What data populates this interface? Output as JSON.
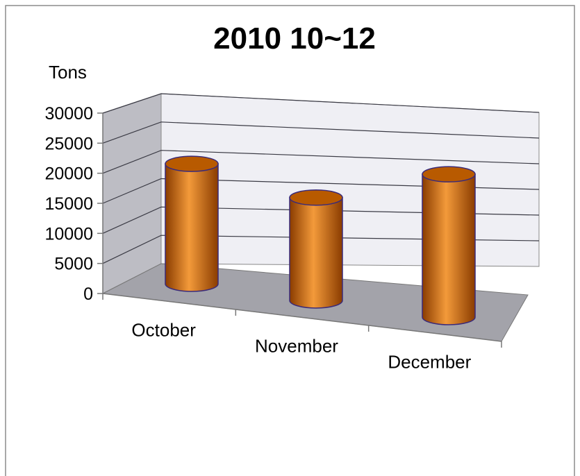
{
  "chart_data": {
    "type": "bar",
    "title": "2010 10~12",
    "ylabel": "Tons",
    "xlabel": "",
    "categories": [
      "October",
      "November",
      "December"
    ],
    "values": [
      21000,
      18000,
      25000
    ],
    "ylim": [
      0,
      30000
    ],
    "yticks": [
      0,
      5000,
      10000,
      15000,
      20000,
      25000,
      30000
    ],
    "grid": true,
    "legend": "none",
    "colors": {
      "bar": "#e07000",
      "bar_dark": "#8a3c00",
      "bar_light": "#f39a3a",
      "bar_top": "#b85a00",
      "outline": "#3a2a7a",
      "back_wall": "#efeff4",
      "side_wall": "#bdbdc4",
      "floor": "#a3a3aa",
      "gridline": "#3a3a44"
    }
  }
}
